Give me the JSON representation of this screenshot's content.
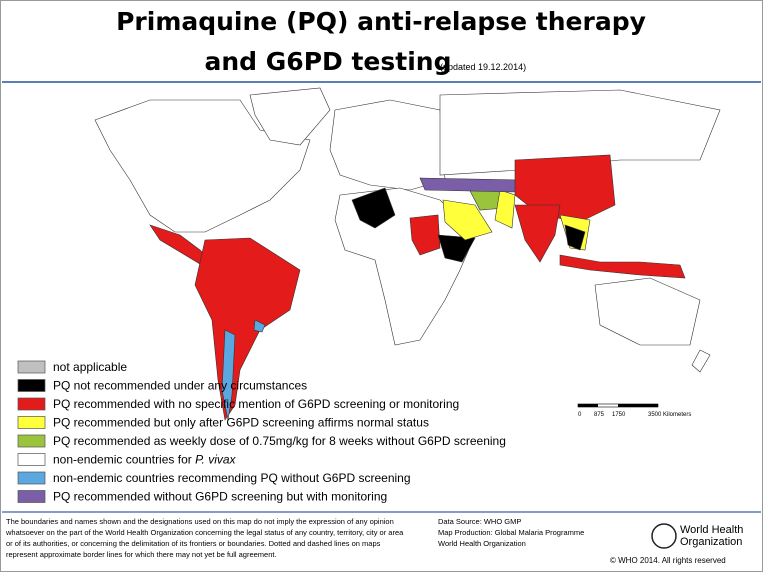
{
  "header": {
    "title_line1": "Primaquine (PQ) anti-relapse therapy",
    "title_line2": "and G6PD testing",
    "updated": "(updated  19.12.2014)"
  },
  "legend": {
    "items": [
      {
        "label": "not applicable",
        "color": "#c0c0c0"
      },
      {
        "label": "PQ not recommended under any circumstances",
        "color": "#000000"
      },
      {
        "label": "PQ recommended with no specific mention of G6PD screening or monitoring",
        "color": "#e31b1b"
      },
      {
        "label": "PQ recommended but only after G6PD screening affirms normal status",
        "color": "#ffff3c"
      },
      {
        "label": "PQ recommended as weekly dose of 0.75mg/kg for 8 weeks without G6PD screening",
        "color": "#9ac43c"
      },
      {
        "label": "non-endemic countries for ",
        "italic": "P. vivax",
        "color": "#ffffff"
      },
      {
        "label": "non-endemic countries recommending PQ without G6PD screening",
        "color": "#5ba7e0"
      },
      {
        "label": "PQ recommended without G6PD screening but with monitoring",
        "color": "#7b5ea8"
      }
    ]
  },
  "scale": {
    "labels": [
      "0",
      "875",
      "1750",
      "3500 Kilometers"
    ]
  },
  "footer": {
    "disclaimer": [
      "The boundaries and names shown and the designations  used on this map do not imply the expression of any opinion",
      "whatsoever on the part of the World Health Organization  concerning the legal status  of any country, territory, city or area",
      "or of its authorities, or concerning the delimitation  of its frontiers  or boundaries.  Dotted  and dashed lines on maps",
      "represent approximate border lines for which there may not yet be full agreement."
    ],
    "source": [
      "Data Source: WHO GMP",
      "Map Production:  Global Malaria Programme",
      "World Health Organization"
    ],
    "logo": [
      "World Health",
      "Organization"
    ],
    "copyright": "© WHO 2014. All rights reserved"
  }
}
